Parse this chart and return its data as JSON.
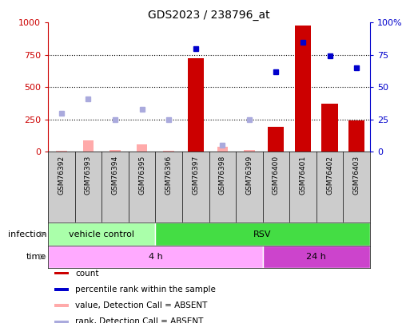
{
  "title": "GDS2023 / 238796_at",
  "samples": [
    "GSM76392",
    "GSM76393",
    "GSM76394",
    "GSM76395",
    "GSM76396",
    "GSM76397",
    "GSM76398",
    "GSM76399",
    "GSM76400",
    "GSM76401",
    "GSM76402",
    "GSM76403"
  ],
  "count_values": [
    null,
    null,
    null,
    null,
    null,
    725,
    null,
    null,
    195,
    980,
    375,
    240
  ],
  "count_absent": [
    10,
    90,
    15,
    55,
    10,
    null,
    40,
    15,
    null,
    null,
    null,
    null
  ],
  "rank_present": [
    null,
    null,
    null,
    null,
    null,
    80,
    null,
    null,
    62,
    85,
    74,
    65
  ],
  "rank_absent": [
    30,
    41,
    25,
    33,
    25,
    null,
    5,
    25,
    null,
    null,
    null,
    null
  ],
  "ylim_left": [
    0,
    1000
  ],
  "ylim_right": [
    0,
    100
  ],
  "yticks_left": [
    0,
    250,
    500,
    750,
    1000
  ],
  "yticks_right": [
    0,
    25,
    50,
    75,
    100
  ],
  "infection_groups": [
    {
      "label": "vehicle control",
      "start": 0,
      "end": 4,
      "color": "#aaffaa"
    },
    {
      "label": "RSV",
      "start": 4,
      "end": 12,
      "color": "#44dd44"
    }
  ],
  "time_groups": [
    {
      "label": "4 h",
      "start": 0,
      "end": 8,
      "color": "#ffaaff"
    },
    {
      "label": "24 h",
      "start": 8,
      "end": 12,
      "color": "#cc44cc"
    }
  ],
  "legend_items": [
    {
      "label": "count",
      "color": "#cc0000"
    },
    {
      "label": "percentile rank within the sample",
      "color": "#0000cc"
    },
    {
      "label": "value, Detection Call = ABSENT",
      "color": "#ffaaaa"
    },
    {
      "label": "rank, Detection Call = ABSENT",
      "color": "#aaaadd"
    }
  ],
  "bar_color": "#cc0000",
  "absent_bar_color": "#ffaaaa",
  "rank_present_color": "#0000cc",
  "rank_absent_color": "#aaaadd",
  "label_area_color": "#cccccc",
  "grid_color": "#000000"
}
